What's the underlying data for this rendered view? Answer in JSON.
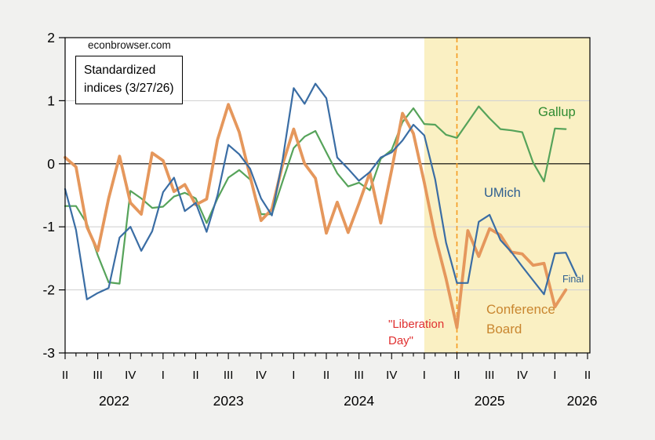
{
  "page": {
    "background_color": "#f1f1ef",
    "plot_background_color": "#ffffff",
    "border_color": "#000000",
    "gridline_color": "#d4d4d4"
  },
  "header": {
    "watermark": "econbrowser.com",
    "note_line1": "Standardized",
    "note_line2": "indices (3/27/26)"
  },
  "annotations": {
    "gallup_label": "Gallup",
    "gallup_color": "#2f8b31",
    "umich_label": "UMich",
    "umich_color": "#2d5e90",
    "cb_label_line1": "Conference",
    "cb_label_line2": "Board",
    "cb_color": "#c9862f",
    "final_label": "Final",
    "final_color": "#2d5e90",
    "liberation_line1": "\"Liberation",
    "liberation_line2": "Day\"",
    "liberation_color": "#e03030"
  },
  "chart_data": {
    "type": "line",
    "title": "Standardized indices (3/27/26)",
    "xlabel": "",
    "ylabel": "",
    "ylim": [
      -3,
      2
    ],
    "yticks": [
      2,
      1,
      0,
      -1,
      -2,
      -3
    ],
    "gridlines_at": [
      1,
      -1,
      -2
    ],
    "zero_line": 0,
    "grid": "horizontal only",
    "legend_position": "direct on-chart labels",
    "x": [
      "2022-04",
      "2022-05",
      "2022-06",
      "2022-07",
      "2022-08",
      "2022-09",
      "2022-10",
      "2022-11",
      "2022-12",
      "2023-01",
      "2023-02",
      "2023-03",
      "2023-04",
      "2023-05",
      "2023-06",
      "2023-07",
      "2023-08",
      "2023-09",
      "2023-10",
      "2023-11",
      "2023-12",
      "2024-01",
      "2024-02",
      "2024-03",
      "2024-04",
      "2024-05",
      "2024-06",
      "2024-07",
      "2024-08",
      "2024-09",
      "2024-10",
      "2024-11",
      "2024-12",
      "2025-01",
      "2025-02",
      "2025-03",
      "2025-04",
      "2025-05",
      "2025-06",
      "2025-07",
      "2025-08",
      "2025-09",
      "2025-10",
      "2025-11",
      "2025-12",
      "2026-01",
      "2026-02",
      "2026-03"
    ],
    "series": [
      {
        "name": "Gallup",
        "color": "#56a35a",
        "width": 2.2,
        "values": [
          -0.67,
          -0.67,
          -0.95,
          -1.45,
          -1.88,
          -1.9,
          -0.43,
          -0.55,
          -0.7,
          -0.68,
          -0.52,
          -0.46,
          -0.55,
          -0.94,
          -0.55,
          -0.22,
          -0.1,
          -0.25,
          -0.8,
          -0.8,
          -0.27,
          0.25,
          0.43,
          0.52,
          0.18,
          -0.15,
          -0.36,
          -0.3,
          -0.42,
          0.08,
          0.22,
          0.66,
          0.88,
          0.63,
          0.62,
          0.46,
          0.41,
          0.66,
          0.91,
          0.72,
          0.55,
          0.53,
          0.5,
          0.02,
          -0.28,
          0.56,
          0.55,
          null
        ]
      },
      {
        "name": "Conference Board",
        "color": "#e5975c",
        "width": 3.8,
        "values": [
          0.1,
          -0.05,
          -1.0,
          -1.38,
          -0.55,
          0.12,
          -0.62,
          -0.8,
          0.17,
          0.05,
          -0.44,
          -0.33,
          -0.65,
          -0.56,
          0.38,
          0.94,
          0.5,
          -0.2,
          -0.9,
          -0.72,
          0.0,
          0.55,
          0.0,
          -0.23,
          -1.1,
          -0.61,
          -1.09,
          -0.63,
          -0.14,
          -0.94,
          -0.1,
          0.8,
          0.48,
          -0.3,
          -1.15,
          -1.82,
          -2.6,
          -1.06,
          -1.47,
          -1.03,
          -1.13,
          -1.4,
          -1.43,
          -1.61,
          -1.58,
          -2.27,
          -2.0,
          null
        ]
      },
      {
        "name": "UMich",
        "color": "#3a6da4",
        "width": 2.2,
        "values": [
          -0.4,
          -1.05,
          -2.15,
          -2.05,
          -1.97,
          -1.17,
          -1.0,
          -1.38,
          -1.07,
          -0.45,
          -0.22,
          -0.75,
          -0.62,
          -1.08,
          -0.5,
          0.3,
          0.15,
          -0.08,
          -0.55,
          -0.82,
          0.08,
          1.2,
          0.95,
          1.27,
          1.04,
          0.1,
          -0.08,
          -0.27,
          -0.13,
          0.1,
          0.18,
          0.37,
          0.62,
          0.45,
          -0.25,
          -1.25,
          -1.89,
          -1.89,
          -0.92,
          -0.81,
          -1.21,
          -1.4,
          -1.63,
          -1.85,
          -2.07,
          -1.42,
          -1.41,
          -1.78
        ]
      }
    ],
    "quarter_tick_labels": [
      "II",
      "III",
      "IV",
      "I",
      "II",
      "III",
      "IV",
      "I",
      "II",
      "III",
      "IV",
      "I",
      "II",
      "III",
      "IV",
      "I",
      "II"
    ],
    "year_labels": [
      {
        "label": "2022",
        "center_month_index": 4.5
      },
      {
        "label": "2023",
        "center_month_index": 15
      },
      {
        "label": "2024",
        "center_month_index": 27
      },
      {
        "label": "2025",
        "center_month_index": 39
      },
      {
        "label": "2026",
        "center_month_index": 47.5
      }
    ],
    "shaded_region": {
      "from": "2025-01",
      "to": "end",
      "color": "#faf0c3"
    },
    "vline": {
      "at": "2025-04",
      "style": "dashed",
      "color": "#f59b20",
      "label": "\"Liberation Day\""
    }
  }
}
